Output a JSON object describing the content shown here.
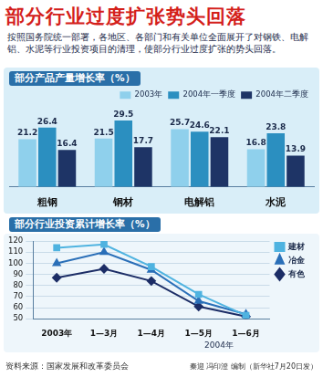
{
  "header": {
    "title": "部分行业过度扩张势头回落",
    "intro": "按照国务院统一部署，各地区、各部门和有关单位全面展开了对钢铁、电解铝、水泥等行业投资项目的清理，使部分行业过度扩张的势头回落。"
  },
  "chart_data": [
    {
      "type": "bar",
      "title": "部分产品产量增长率（%）",
      "categories": [
        "粗钢",
        "钢材",
        "电解铝",
        "水泥"
      ],
      "series": [
        {
          "name": "2003年",
          "color": "#8fd0ec",
          "values": [
            21.2,
            21.5,
            25.7,
            16.8
          ]
        },
        {
          "name": "2004年一季度",
          "color": "#2b8fc0",
          "values": [
            26.4,
            29.5,
            24.6,
            23.8
          ]
        },
        {
          "name": "2004年二季度",
          "color": "#1e3466",
          "values": [
            16.4,
            17.7,
            22.1,
            13.9
          ]
        }
      ],
      "ylim": [
        0,
        35
      ],
      "data_labels": true,
      "tick_labels": "x",
      "legend": "top-right",
      "grid": false
    },
    {
      "type": "line",
      "title": "部分行业投资累计增长率（%）",
      "categories": [
        "2003年",
        "1—3月",
        "1—4月",
        "1—5月",
        "1—6月"
      ],
      "annotations": [
        "2004年"
      ],
      "series": [
        {
          "name": "建材",
          "color": "#4fb3e0",
          "marker": "square",
          "values": [
            114,
            117,
            97,
            72,
            53
          ]
        },
        {
          "name": "冶金",
          "color": "#2a6fb8",
          "marker": "triangle",
          "values": [
            100,
            110,
            94,
            66,
            54
          ]
        },
        {
          "name": "有色",
          "color": "#1c2d66",
          "marker": "diamond",
          "values": [
            87,
            95,
            84,
            61,
            52
          ]
        }
      ],
      "ylim": [
        50,
        120
      ],
      "yticks": [
        50,
        60,
        70,
        80,
        90,
        100,
        110,
        120
      ],
      "legend": "top-right",
      "grid": true
    }
  ],
  "footer": {
    "source": "资料来源：国家发展和改革委员会",
    "credit": "秦迎 冯印澄 编制（新华社7月20日发）"
  }
}
